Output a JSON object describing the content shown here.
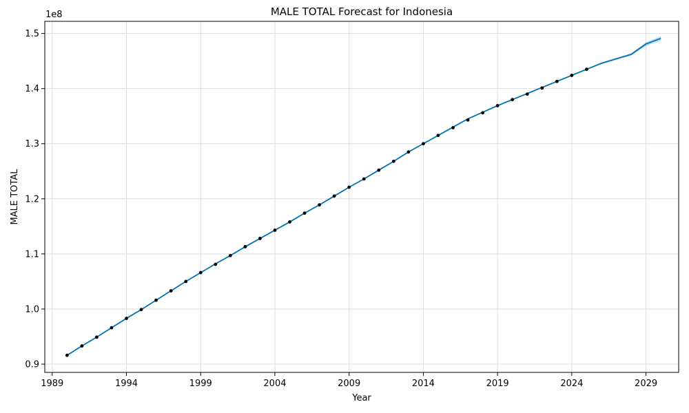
{
  "chart_data": {
    "type": "line",
    "title": "MALE TOTAL Forecast for Indonesia",
    "xlabel": "Year",
    "ylabel": "MALE TOTAL",
    "y_offset_label": "1e8",
    "y_scale": 100000000,
    "xlim": [
      1988.5,
      2031.2
    ],
    "ylim": [
      0.885,
      1.522
    ],
    "x_ticks": [
      1989,
      1994,
      1999,
      2004,
      2009,
      2014,
      2019,
      2024,
      2029
    ],
    "x_tick_labels": [
      "1989",
      "1994",
      "1999",
      "2004",
      "2009",
      "2014",
      "2019",
      "2024",
      "2029"
    ],
    "y_ticks": [
      0.9,
      1.0,
      1.1,
      1.2,
      1.3,
      1.4,
      1.5
    ],
    "y_tick_labels": [
      "0.9",
      "1.0",
      "1.1",
      "1.2",
      "1.3",
      "1.4",
      "1.5"
    ],
    "grid": true,
    "colors": {
      "forecast": "#0072B2",
      "band": "#0072B2",
      "observed": "#000000",
      "grid": "#dddddd"
    },
    "observed": {
      "x": [
        1990,
        1991,
        1992,
        1993,
        1994,
        1995,
        1996,
        1997,
        1998,
        1999,
        2000,
        2001,
        2002,
        2003,
        2004,
        2005,
        2006,
        2007,
        2008,
        2009,
        2010,
        2011,
        2012,
        2013,
        2014,
        2015,
        2016,
        2017,
        2018,
        2019,
        2020,
        2021,
        2022,
        2023,
        2024,
        2025
      ],
      "y": [
        0.916,
        0.933,
        0.949,
        0.966,
        0.983,
        0.999,
        1.016,
        1.033,
        1.05,
        1.066,
        1.081,
        1.097,
        1.113,
        1.128,
        1.143,
        1.158,
        1.174,
        1.189,
        1.205,
        1.221,
        1.236,
        1.252,
        1.268,
        1.285,
        1.3,
        1.315,
        1.329,
        1.343,
        1.356,
        1.369,
        1.38,
        1.39,
        1.401,
        1.413,
        1.424,
        1.435
      ]
    },
    "forecast": {
      "x": [
        1990,
        1991,
        1992,
        1993,
        1994,
        1995,
        1996,
        1997,
        1998,
        1999,
        2000,
        2001,
        2002,
        2003,
        2004,
        2005,
        2006,
        2007,
        2008,
        2009,
        2010,
        2011,
        2012,
        2013,
        2014,
        2015,
        2016,
        2017,
        2018,
        2019,
        2020,
        2021,
        2022,
        2023,
        2024,
        2025,
        2026,
        2027,
        2028,
        2029,
        2030
      ],
      "y": [
        0.916,
        0.933,
        0.949,
        0.966,
        0.983,
        0.999,
        1.016,
        1.033,
        1.05,
        1.066,
        1.082,
        1.097,
        1.113,
        1.128,
        1.143,
        1.158,
        1.174,
        1.189,
        1.205,
        1.221,
        1.236,
        1.252,
        1.268,
        1.285,
        1.3,
        1.315,
        1.33,
        1.345,
        1.357,
        1.369,
        1.38,
        1.391,
        1.402,
        1.413,
        1.424,
        1.435,
        1.446,
        1.454,
        1.462,
        1.481,
        1.491
      ],
      "lower": [
        0.915,
        0.932,
        0.948,
        0.965,
        0.982,
        0.998,
        1.015,
        1.032,
        1.049,
        1.065,
        1.081,
        1.096,
        1.112,
        1.127,
        1.142,
        1.157,
        1.173,
        1.188,
        1.204,
        1.22,
        1.235,
        1.251,
        1.267,
        1.284,
        1.299,
        1.314,
        1.329,
        1.344,
        1.356,
        1.368,
        1.379,
        1.39,
        1.401,
        1.412,
        1.423,
        1.434,
        1.444,
        1.452,
        1.46,
        1.477,
        1.487
      ],
      "upper": [
        0.917,
        0.934,
        0.95,
        0.967,
        0.984,
        1.0,
        1.017,
        1.034,
        1.051,
        1.067,
        1.083,
        1.098,
        1.114,
        1.129,
        1.144,
        1.159,
        1.175,
        1.19,
        1.206,
        1.222,
        1.237,
        1.253,
        1.269,
        1.286,
        1.301,
        1.316,
        1.331,
        1.346,
        1.358,
        1.37,
        1.381,
        1.392,
        1.403,
        1.414,
        1.425,
        1.436,
        1.447,
        1.456,
        1.464,
        1.484,
        1.495
      ]
    }
  }
}
